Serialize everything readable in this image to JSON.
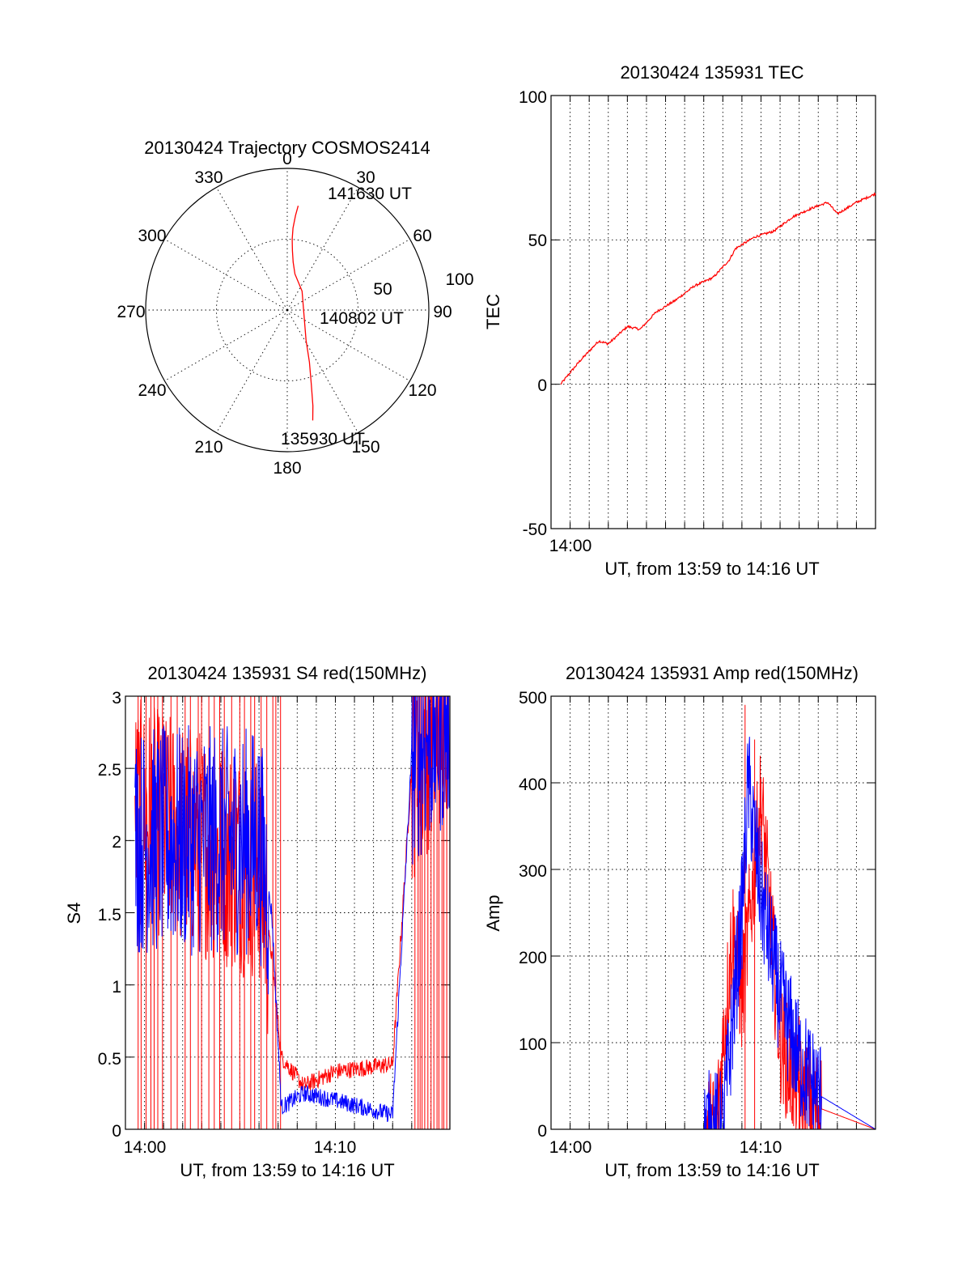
{
  "colors": {
    "red": "#ff0000",
    "blue": "#0000ff",
    "axis": "#000000"
  },
  "chart_data": [
    {
      "id": "trajectory",
      "type": "scatter",
      "subtype": "polar",
      "title": "20130424 Trajectory COSMOS2414",
      "azimuth_labels": [
        "0",
        "30",
        "60",
        "90",
        "120",
        "150",
        "180",
        "210",
        "240",
        "270",
        "300",
        "330"
      ],
      "radius_labels": [
        "50",
        "100"
      ],
      "annotations": [
        "141630 UT",
        "140802 UT",
        "135930 UT"
      ],
      "series": [
        {
          "color": "red",
          "points": [
            [
              6,
              74
            ],
            [
              5,
              67
            ],
            [
              4,
              58
            ],
            [
              4,
              50
            ],
            [
              5,
              42
            ],
            [
              7,
              34
            ],
            [
              12,
              26
            ],
            [
              38,
              17
            ],
            [
              120,
              14
            ],
            [
              148,
              25
            ],
            [
              157,
              40
            ],
            [
              162,
              55
            ],
            [
              165,
              70
            ],
            [
              167,
              80
            ]
          ]
        }
      ]
    },
    {
      "id": "tec",
      "type": "line",
      "title": "20130424 135931 TEC",
      "xlabel": "UT, from 13:59 to 14:16 UT",
      "ylabel": "TEC",
      "x_tick_labels": [
        "14:00"
      ],
      "y_tick_labels": [
        "100",
        "50",
        "0",
        "-50"
      ],
      "ylim": [
        -50,
        100
      ],
      "grid": true,
      "series": [
        {
          "color": "red",
          "x": [
            "13:59:30",
            "14:00:30",
            "14:01:30",
            "14:02:00",
            "14:03:00",
            "14:03:40",
            "14:04:30",
            "14:05:30",
            "14:06:30",
            "14:07:30",
            "14:08:20",
            "14:08:40",
            "14:09:40",
            "14:10:40",
            "14:11:40",
            "14:12:40",
            "14:13:30",
            "14:14:00",
            "14:15:00",
            "14:16:00"
          ],
          "values": [
            0,
            8,
            15,
            14,
            20,
            19,
            25,
            29,
            34,
            37,
            43,
            47,
            51,
            53,
            58,
            61,
            63,
            59,
            63,
            66
          ]
        }
      ]
    },
    {
      "id": "s4",
      "type": "line",
      "title": "20130424 135931 S4 red(150MHz)",
      "xlabel": "UT, from 13:59 to 14:16 UT",
      "ylabel": "S4",
      "x_tick_labels": [
        "14:00",
        "14:10"
      ],
      "y_tick_labels": [
        "3",
        "2.5",
        "2",
        "1.5",
        "1",
        "0.5",
        "0"
      ],
      "ylim": [
        0,
        3
      ],
      "grid": true,
      "series": [
        {
          "color": "red",
          "x": [
            "13:59:30",
            "14:06:00",
            "14:06:40",
            "14:07:10",
            "14:08:20",
            "14:10:00",
            "14:13:00",
            "14:14:00",
            "14:16:00"
          ],
          "values": [
            2.2,
            1.8,
            1.2,
            0.5,
            0.3,
            0.4,
            0.45,
            2.5,
            3.0
          ]
        },
        {
          "color": "blue",
          "x": [
            "13:59:30",
            "14:06:00",
            "14:06:40",
            "14:07:10",
            "14:08:20",
            "14:10:00",
            "14:13:00",
            "14:14:00",
            "14:16:00"
          ],
          "values": [
            2.0,
            2.0,
            1.5,
            0.15,
            0.25,
            0.2,
            0.1,
            2.6,
            2.9
          ]
        }
      ]
    },
    {
      "id": "amp",
      "type": "line",
      "title": "20130424 135931 Amp red(150MHz)",
      "xlabel": "UT, from 13:59 to 14:16 UT",
      "ylabel": "Amp",
      "x_tick_labels": [
        "14:00",
        "14:10"
      ],
      "y_tick_labels": [
        "500",
        "400",
        "300",
        "200",
        "100",
        "0"
      ],
      "ylim": [
        0,
        500
      ],
      "grid": true,
      "series": [
        {
          "color": "red",
          "x": [
            "13:59:30",
            "14:07:40",
            "14:08:30",
            "14:09:00",
            "14:10:00",
            "14:11:00",
            "14:12:00",
            "14:13:00",
            "14:16:00"
          ],
          "values": [
            0,
            0,
            230,
            150,
            380,
            100,
            40,
            25,
            0
          ]
        },
        {
          "color": "blue",
          "x": [
            "13:59:30",
            "14:08:00",
            "14:09:00",
            "14:09:20",
            "14:10:00",
            "14:11:00",
            "14:12:00",
            "14:13:00",
            "14:16:00"
          ],
          "values": [
            0,
            0,
            250,
            400,
            270,
            150,
            80,
            40,
            0
          ]
        }
      ]
    }
  ]
}
